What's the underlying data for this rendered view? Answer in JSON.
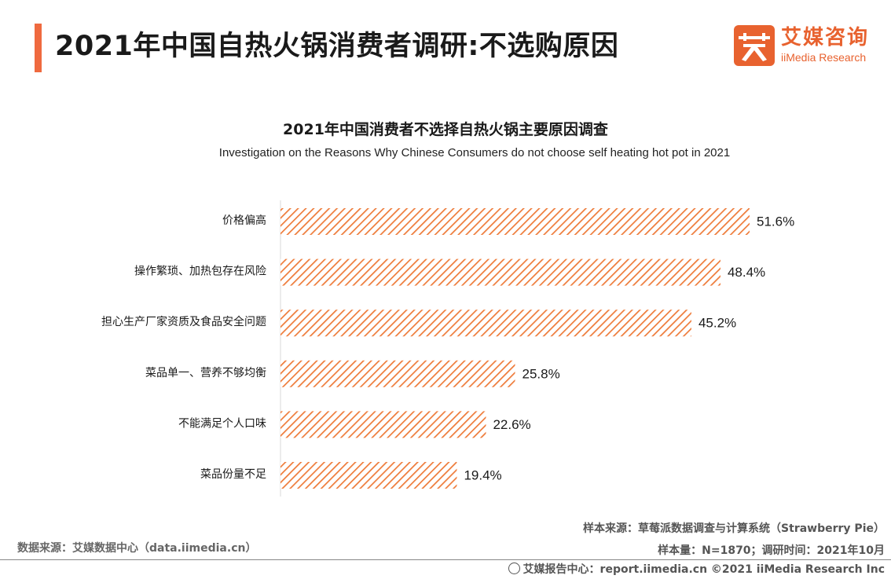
{
  "header": {
    "title": "2021年中国自热火锅消费者调研:不选购原因",
    "logo_cn": "艾媒咨询",
    "logo_en": "iiMedia Research",
    "accent_color": "#ef6a3f"
  },
  "chart_data": {
    "type": "bar",
    "orientation": "horizontal",
    "title": "2021年中国消费者不选择自热火锅主要原因调查",
    "subtitle": "Investigation on the Reasons Why Chinese Consumers do not choose self heating hot pot in 2021",
    "categories": [
      "价格偏高",
      "操作繁琐、加热包存在风险",
      "担心生产厂家资质及食品安全问题",
      "菜品单一、营养不够均衡",
      "不能满足个人口味",
      "菜品份量不足"
    ],
    "values": [
      51.6,
      48.4,
      45.2,
      25.8,
      22.6,
      19.4
    ],
    "value_labels": [
      "51.6%",
      "48.4%",
      "45.2%",
      "25.8%",
      "22.6%",
      "19.4%"
    ],
    "unit": "%",
    "xlim": [
      0,
      53
    ],
    "bar_color": "#ee7a38",
    "bar_pattern": "diagonal-hatch",
    "grid": false,
    "legend": "none"
  },
  "footer": {
    "data_source": "数据来源：艾媒数据中心（data.iimedia.cn）",
    "sample_source": "样本来源：草莓派数据调查与计算系统（Strawberry Pie）",
    "sample_size": "样本量：N=1870；调研时间：2021年10月",
    "report_center": "艾媒报告中心：report.iimedia.cn   ©2021  iiMedia Research  Inc"
  }
}
